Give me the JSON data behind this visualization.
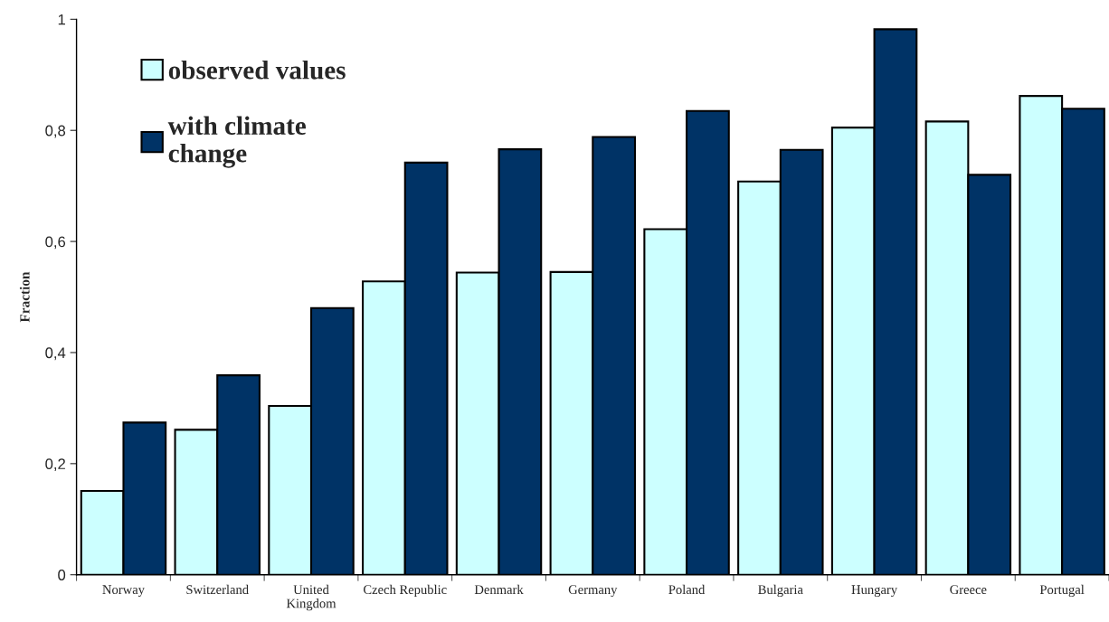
{
  "chart_data": {
    "type": "bar",
    "ylabel": "Fraction",
    "categories": [
      "Norway",
      "Switzerland",
      "United\nKingdom",
      "Czech Republic",
      "Denmark",
      "Germany",
      "Poland",
      "Bulgaria",
      "Hungary",
      "Greece",
      "Portugal"
    ],
    "series": [
      {
        "name": "observed values",
        "color": "#ccffff",
        "values": [
          0.151,
          0.261,
          0.304,
          0.528,
          0.544,
          0.545,
          0.622,
          0.708,
          0.805,
          0.816,
          0.862
        ]
      },
      {
        "name": "with climate\nchange",
        "color": "#003366",
        "values": [
          0.274,
          0.359,
          0.48,
          0.742,
          0.766,
          0.788,
          0.835,
          0.765,
          0.982,
          0.72,
          0.839
        ]
      }
    ],
    "ylim": [
      0,
      1
    ],
    "yticks": [
      0,
      {
        "value": 0.2,
        "label": "0,2"
      },
      {
        "value": 0.4,
        "label": "0,4"
      },
      {
        "value": 0.6,
        "label": "0,6"
      },
      {
        "value": 0.8,
        "label": "0,8"
      },
      1
    ],
    "grid": false,
    "legend": "top left"
  }
}
